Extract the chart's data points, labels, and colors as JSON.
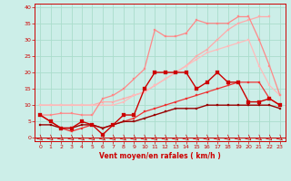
{
  "xlabel": "Vent moyen/en rafales ( km/h )",
  "bg_color": "#cceee8",
  "grid_color": "#aaddcc",
  "xlim": [
    -0.5,
    23.5
  ],
  "ylim": [
    -1,
    41
  ],
  "yticks": [
    0,
    5,
    10,
    15,
    20,
    25,
    30,
    35,
    40
  ],
  "xticks": [
    0,
    1,
    2,
    3,
    4,
    5,
    6,
    7,
    8,
    9,
    10,
    11,
    12,
    13,
    14,
    15,
    16,
    17,
    18,
    19,
    20,
    21,
    22,
    23
  ],
  "series": [
    {
      "x": [
        0,
        1,
        2,
        3,
        4,
        5,
        6,
        7,
        8,
        9,
        10,
        11,
        12,
        13,
        14,
        15,
        16,
        17,
        18,
        19,
        20,
        21,
        22,
        23
      ],
      "y": [
        10,
        10,
        10,
        10,
        10,
        10,
        11,
        11,
        12,
        13,
        14,
        16,
        18,
        20,
        22,
        25,
        27,
        30,
        33,
        35,
        36,
        37,
        37,
        null
      ],
      "color": "#ffaaaa",
      "lw": 0.9,
      "marker": "s",
      "ms": 1.8,
      "zorder": 2
    },
    {
      "x": [
        0,
        1,
        2,
        3,
        4,
        5,
        6,
        7,
        8,
        9,
        10,
        11,
        12,
        13,
        14,
        15,
        16,
        17,
        18,
        19,
        20,
        21,
        22,
        23
      ],
      "y": [
        7,
        7,
        7.5,
        7.5,
        7,
        7,
        12,
        13,
        15,
        18,
        21,
        33,
        31,
        31,
        32,
        36,
        35,
        35,
        35,
        37,
        37,
        30,
        22,
        13
      ],
      "color": "#ff8888",
      "lw": 0.9,
      "marker": "s",
      "ms": 1.8,
      "zorder": 3
    },
    {
      "x": [
        0,
        1,
        2,
        3,
        4,
        5,
        6,
        7,
        8,
        9,
        10,
        11,
        12,
        13,
        14,
        15,
        16,
        17,
        18,
        19,
        20,
        21,
        22,
        23
      ],
      "y": [
        10,
        10,
        10,
        10,
        10,
        10,
        10,
        10,
        11,
        13,
        14,
        16,
        18,
        20,
        22,
        24,
        26,
        27,
        28,
        29,
        30,
        22,
        16,
        13
      ],
      "color": "#ffbbbb",
      "lw": 0.9,
      "marker": "s",
      "ms": 1.8,
      "zorder": 2
    },
    {
      "x": [
        0,
        1,
        2,
        3,
        4,
        5,
        6,
        7,
        8,
        9,
        10,
        11,
        12,
        13,
        14,
        15,
        16,
        17,
        18,
        19,
        20,
        21,
        22,
        23
      ],
      "y": [
        7,
        5,
        3,
        3,
        5,
        4,
        1,
        4,
        7,
        7,
        15,
        20,
        20,
        20,
        20,
        15,
        17,
        20,
        17,
        17,
        11,
        11,
        12,
        10
      ],
      "color": "#cc0000",
      "lw": 1.0,
      "marker": "s",
      "ms": 2.2,
      "zorder": 5
    },
    {
      "x": [
        0,
        1,
        2,
        3,
        4,
        5,
        6,
        7,
        8,
        9,
        10,
        11,
        12,
        13,
        14,
        15,
        16,
        17,
        18,
        19,
        20,
        21,
        22,
        23
      ],
      "y": [
        7,
        5,
        3,
        2,
        3,
        4,
        3,
        4,
        5,
        6,
        8,
        9,
        10,
        11,
        12,
        13,
        14,
        15,
        16,
        17,
        17,
        17,
        12,
        10
      ],
      "color": "#ee3333",
      "lw": 0.9,
      "marker": "s",
      "ms": 1.8,
      "zorder": 4
    },
    {
      "x": [
        0,
        1,
        2,
        3,
        4,
        5,
        6,
        7,
        8,
        9,
        10,
        11,
        12,
        13,
        14,
        15,
        16,
        17,
        18,
        19,
        20,
        21,
        22,
        23
      ],
      "y": [
        4,
        4,
        3,
        3,
        4,
        4,
        3,
        4,
        5,
        5,
        6,
        7,
        8,
        9,
        9,
        9,
        10,
        10,
        10,
        10,
        10,
        10,
        10,
        9
      ],
      "color": "#990000",
      "lw": 1.0,
      "marker": "s",
      "ms": 1.8,
      "zorder": 4
    }
  ]
}
